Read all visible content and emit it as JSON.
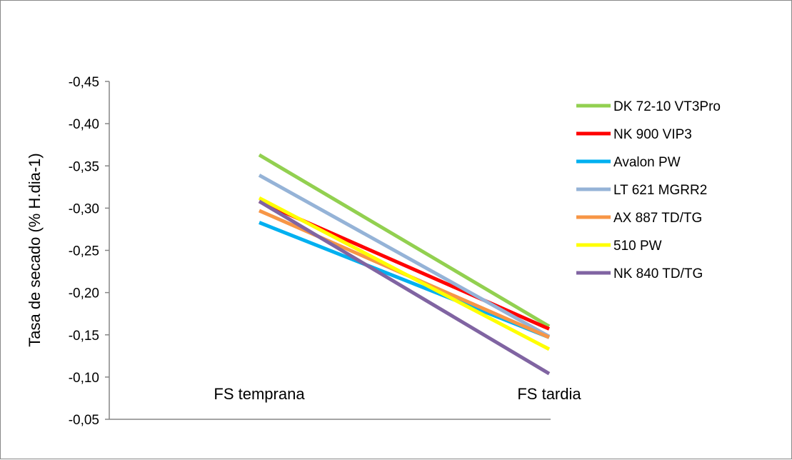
{
  "chart_data": {
    "type": "line",
    "title": "",
    "xlabel": "",
    "ylabel": "Tasa de secado (% H.dia-1)",
    "categories": [
      "FS temprana",
      "FS tardia"
    ],
    "y_axis_reversed": true,
    "ylim": [
      -0.05,
      -0.45
    ],
    "yticks": [
      -0.05,
      -0.1,
      -0.15,
      -0.2,
      -0.25,
      -0.3,
      -0.35,
      -0.4,
      -0.45
    ],
    "ytick_labels": [
      "-0,05",
      "-0,10",
      "-0,15",
      "-0,20",
      "-0,25",
      "-0,30",
      "-0,35",
      "-0,40",
      "-0,45"
    ],
    "grid": false,
    "legend_position": "right",
    "series": [
      {
        "name": "DK 72-10 VT3Pro",
        "color": "#92D050",
        "values": [
          -0.363,
          -0.16
        ]
      },
      {
        "name": "NK 900 VIP3",
        "color": "#FF0000",
        "values": [
          -0.308,
          -0.157
        ]
      },
      {
        "name": "Avalon PW",
        "color": "#00B0F0",
        "values": [
          -0.283,
          -0.147
        ]
      },
      {
        "name": "LT 621 MGRR2",
        "color": "#95B3D7",
        "values": [
          -0.339,
          -0.148
        ]
      },
      {
        "name": "AX 887 TD/TG",
        "color": "#F79646",
        "values": [
          -0.297,
          -0.147
        ]
      },
      {
        "name": "510 PW",
        "color": "#FFFF00",
        "values": [
          -0.312,
          -0.133
        ]
      },
      {
        "name": "NK 840 TD/TG",
        "color": "#8064A2",
        "values": [
          -0.308,
          -0.104
        ]
      }
    ]
  }
}
